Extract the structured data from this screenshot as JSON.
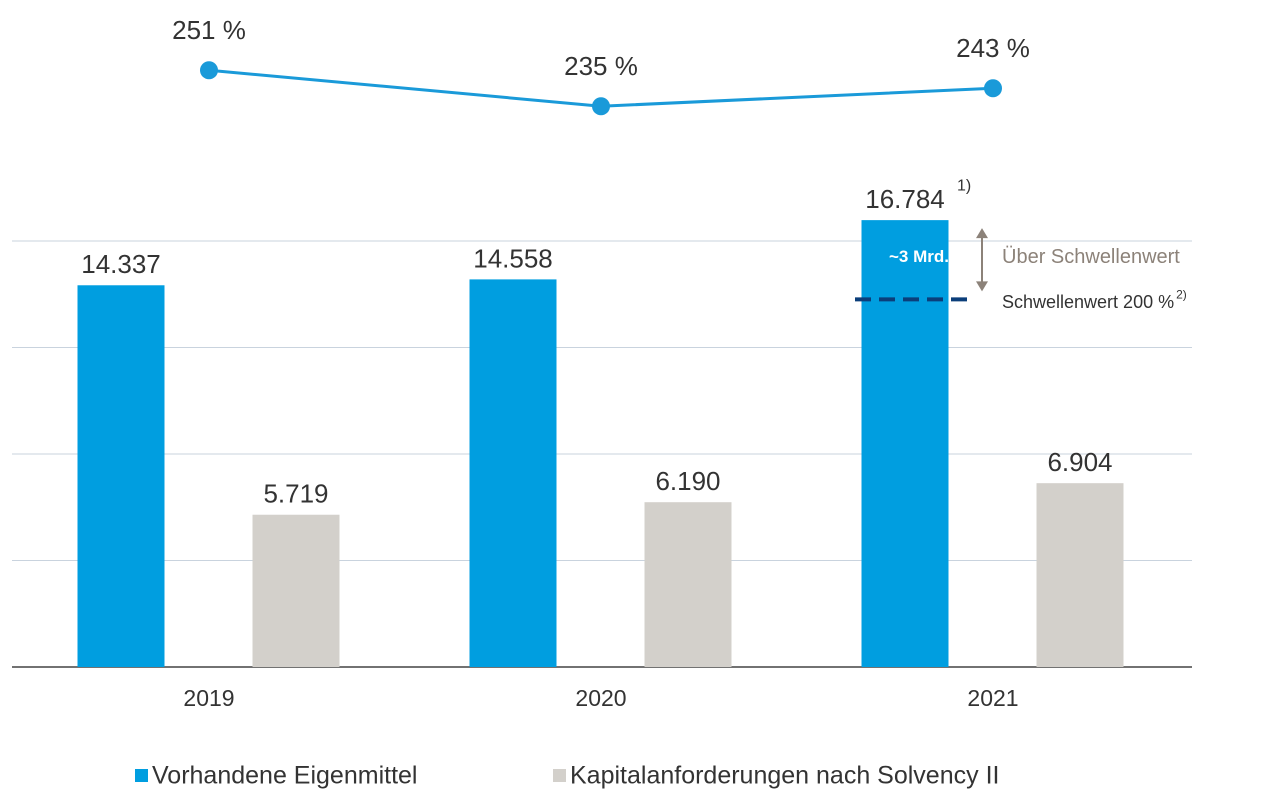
{
  "chart_data": {
    "type": "bar",
    "categories": [
      "2019",
      "2020",
      "2021"
    ],
    "series": [
      {
        "name": "Vorhandene Eigenmittel",
        "color": "#009ee0",
        "values": [
          14337,
          14558,
          16784
        ],
        "value_labels": [
          "14.337",
          "14.558",
          "16.784"
        ]
      },
      {
        "name": "Kapitalanforderungen nach Solvency II",
        "color": "#d3d0cb",
        "values": [
          5719,
          6190,
          6904
        ],
        "value_labels": [
          "5.719",
          "6.190",
          "6.904"
        ]
      },
      {
        "type": "line",
        "axis": "y2",
        "color": "#1a9ad9",
        "values": [
          251,
          235,
          243
        ],
        "value_labels": [
          "251 %",
          "235 %",
          "243 %"
        ]
      }
    ],
    "ylim": [
      0,
      16000
    ],
    "yticks": [
      0,
      4000,
      8000,
      12000,
      16000
    ],
    "grid": true,
    "y2lim": [
      220,
      260
    ],
    "threshold": 13808,
    "annotations": {
      "footnote_1": "1)",
      "excess": "~3 Mrd.",
      "excess_label": "Über Schwellenwert",
      "threshold_label": "Schwellenwert 200 %",
      "footnote_2": "2)"
    }
  }
}
